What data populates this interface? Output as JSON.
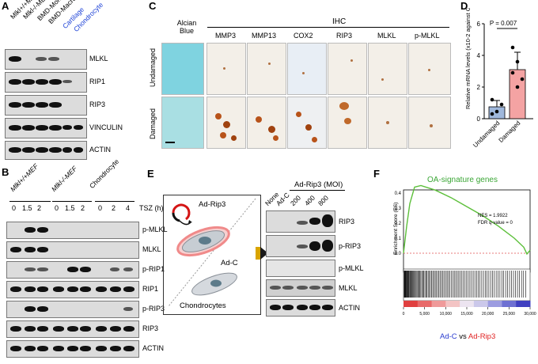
{
  "panels": {
    "A": {
      "letter": "A",
      "lanes": [
        "Mlkl+/+MEF",
        "Mlkl-/-MEF",
        "BMD-Monocyte",
        "BMD-Macrophage",
        "Cartilage",
        "Chondrocyte"
      ],
      "proteins": [
        "MLKL",
        "RIP1",
        "RIP3",
        "VINCULIN",
        "ACTIN"
      ],
      "lane_colors": [
        "#000000",
        "#000000",
        "#000000",
        "#000000",
        "#1a3fd6",
        "#1a3fd6"
      ]
    },
    "B": {
      "letter": "B",
      "group_labels": [
        "Mlkl+/+MEF",
        "Mlkl-/-MEF",
        "Chondrocyte"
      ],
      "times": [
        "0",
        "1.5",
        "2",
        "0",
        "1.5",
        "2",
        "0",
        "2",
        "4"
      ],
      "time_unit": "TSZ (h)",
      "proteins": [
        "p-MLKL",
        "MLKL",
        "p-RIP1",
        "RIP1",
        "p-RIP3",
        "RIP3",
        "ACTIN"
      ]
    },
    "C": {
      "letter": "C",
      "alcian_label": "Alcian Blue",
      "ihc_header": "IHC",
      "columns": [
        "MMP3",
        "MMP13",
        "COX2",
        "RIP3",
        "MLKL",
        "p-MLKL"
      ],
      "rows": [
        "Undamaged",
        "Damaged"
      ]
    },
    "D": {
      "letter": "D",
      "ylabel": "Relative mRNA levels (x10-2 against GAPDH)",
      "p_value": "P = 0.007",
      "chart_data": {
        "type": "bar",
        "categories": [
          "Undamaged",
          "Damaged"
        ],
        "values": [
          0.75,
          3.1
        ],
        "errors": [
          0.4,
          1.1
        ],
        "points": [
          [
            1.2,
            0.45,
            0.9,
            0.3
          ],
          [
            4.5,
            3.6,
            2.5,
            2.9,
            2.0
          ]
        ],
        "colors": [
          "#9fb8dc",
          "#f4a3a3"
        ],
        "ylim": [
          0,
          6
        ],
        "yticks": [
          "0",
          "2",
          "4",
          "6"
        ]
      }
    },
    "E": {
      "letter": "E",
      "virus_label": "Ad-Rip3",
      "control_label": "Ad-C",
      "cell_label": "Chondrocytes",
      "blot_header": "Ad-Rip3 (MOI)",
      "lanes": [
        "None",
        "Ad-C",
        "200",
        "400",
        "800"
      ],
      "proteins": [
        "RIP3",
        "p-RIP3",
        "p-MLKL",
        "MLKL",
        "ACTIN"
      ]
    },
    "F": {
      "letter": "F",
      "title": "OA-signature genes",
      "title_color": "#3aa635",
      "ylabel": "Enrichment Score (ES)",
      "nes": "NES = 1.9922",
      "fdr": "FDR q-value = 0",
      "yticks": [
        "0.4",
        "0.3",
        "0.2",
        "0.1",
        "0.0"
      ],
      "xticks": [
        "0",
        "5,000",
        "10,000",
        "15,000",
        "20,000",
        "25,000",
        "30,000"
      ],
      "legend_left": "Ad-C",
      "legend_vs": "vs",
      "legend_right": "Ad-Rip3",
      "left_color": "#2a3cd0",
      "right_color": "#e02020"
    }
  }
}
